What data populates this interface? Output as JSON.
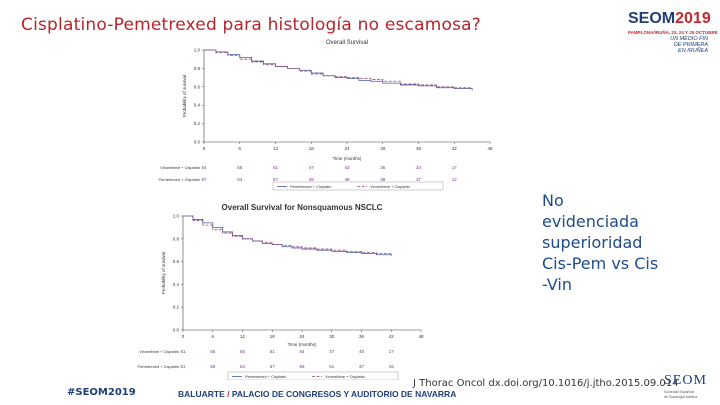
{
  "slide": {
    "title": "Cisplatino-Pemetrexed para histología no escamosa?",
    "logo": {
      "brand_prefix": "SEOM",
      "brand_year": "2019",
      "subtitle": "PAMPLONA/IRUÑA, 23, 24 Y 25 OCTUBRE",
      "tagline_1": "UN MEDIO FIN DE PRIMERA",
      "tagline_2": "EN IRUÑEA"
    },
    "side_note": "No evidenciada superioridad Cis-Pem vs Cis -Vin",
    "citation": "J Thorac Oncol dx.doi.org/10.1016/j.jtho.2015.09.014",
    "footer": {
      "hashtag": "#SEOM2019",
      "venue_a": "BALUARTE",
      "venue_b": "PALACIO DE CONGRESOS Y AUDITORIO DE NAVARRA",
      "org_logo": "SEOM",
      "org_line_1": "Sociedad Española",
      "org_line_2": "de Oncología Médica"
    }
  },
  "chart_data": [
    {
      "type": "line",
      "title": "Overall Survival",
      "xlabel": "Time (months)",
      "ylabel": "Probability of survival",
      "xlim": [
        0,
        48
      ],
      "ylim": [
        0,
        1
      ],
      "x_ticks": [
        "0",
        "6",
        "12",
        "18",
        "24",
        "30",
        "36",
        "42",
        "48"
      ],
      "y_ticks": [
        "0.0",
        "0.2",
        "0.4",
        "0.6",
        "0.8",
        "1.0"
      ],
      "series": [
        {
          "name": "Pemetrexed + Cisplatin",
          "color": "#4a5aa0",
          "dash": "solid",
          "x": [
            0,
            2,
            4,
            6,
            8,
            10,
            12,
            14,
            16,
            18,
            20,
            22,
            24,
            26,
            28,
            30,
            33,
            36,
            39,
            42,
            45
          ],
          "values": [
            1.0,
            0.98,
            0.95,
            0.92,
            0.88,
            0.85,
            0.82,
            0.8,
            0.78,
            0.75,
            0.72,
            0.7,
            0.69,
            0.67,
            0.66,
            0.64,
            0.62,
            0.61,
            0.59,
            0.58,
            0.56
          ]
        },
        {
          "name": "Vinorelbine + Cisplatin",
          "color": "#9a4a7c",
          "dash": "dashed",
          "x": [
            0,
            2,
            4,
            6,
            8,
            10,
            12,
            14,
            16,
            18,
            20,
            22,
            24,
            26,
            28,
            30,
            33,
            36,
            39,
            42,
            45
          ],
          "values": [
            1.0,
            0.97,
            0.94,
            0.9,
            0.87,
            0.84,
            0.82,
            0.8,
            0.77,
            0.74,
            0.72,
            0.71,
            0.7,
            0.69,
            0.68,
            0.66,
            0.63,
            0.62,
            0.6,
            0.59,
            0.57
          ]
        }
      ],
      "at_risk_rows": [
        {
          "label": "Vinorelbine + Cisplatin",
          "values": [
            "64",
            "55",
            "51",
            "47",
            "43",
            "36",
            "34",
            "17"
          ]
        },
        {
          "label": "Pemetrexed + Cisplatin",
          "values": [
            "67",
            "64",
            "57",
            "49",
            "48",
            "39",
            "37",
            "12"
          ]
        }
      ],
      "grid": false
    },
    {
      "type": "line",
      "title": "Overall Survival for Nonsquamous NSCLC",
      "xlabel": "Time (months)",
      "ylabel": "Probability of survival",
      "xlim": [
        0,
        48
      ],
      "ylim": [
        0,
        1
      ],
      "x_ticks": [
        "0",
        "6",
        "12",
        "18",
        "24",
        "30",
        "36",
        "42",
        "48"
      ],
      "y_ticks": [
        "0.0",
        "0.2",
        "0.4",
        "0.6",
        "0.8",
        "1.0"
      ],
      "series": [
        {
          "name": "Pemetrexed + Cisplatin",
          "color": "#4a5aa0",
          "dash": "solid",
          "x": [
            0,
            2,
            4,
            6,
            8,
            10,
            12,
            14,
            16,
            18,
            20,
            22,
            24,
            27,
            30,
            33,
            36,
            39,
            42
          ],
          "values": [
            1.0,
            0.97,
            0.94,
            0.9,
            0.86,
            0.83,
            0.8,
            0.78,
            0.76,
            0.75,
            0.73,
            0.72,
            0.71,
            0.7,
            0.69,
            0.68,
            0.67,
            0.66,
            0.65
          ]
        },
        {
          "name": "Vinorelbine + Cisplatin",
          "color": "#9a4a7c",
          "dash": "dashed",
          "x": [
            0,
            2,
            4,
            6,
            8,
            10,
            12,
            14,
            16,
            18,
            20,
            22,
            24,
            27,
            30,
            33,
            36,
            39,
            42
          ],
          "values": [
            1.0,
            0.96,
            0.92,
            0.88,
            0.85,
            0.82,
            0.8,
            0.78,
            0.77,
            0.75,
            0.74,
            0.73,
            0.72,
            0.71,
            0.7,
            0.69,
            0.68,
            0.67,
            0.66
          ]
        }
      ],
      "at_risk_rows": [
        {
          "label": "Vinorelbine + Cisplatin",
          "values": [
            "61",
            "56",
            "55",
            "51",
            "54",
            "47",
            "45",
            "17"
          ]
        },
        {
          "label": "Pemetrexed + Cisplatin",
          "values": [
            "61",
            "60",
            "54",
            "57",
            "56",
            "51",
            "37",
            "15"
          ]
        }
      ],
      "grid": false
    }
  ]
}
